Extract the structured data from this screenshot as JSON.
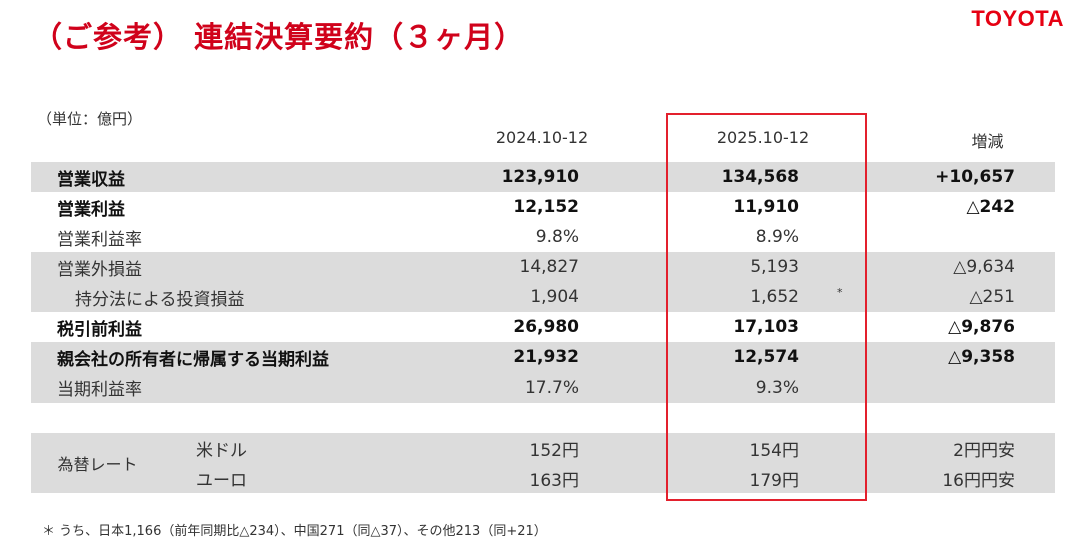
{
  "header": {
    "title": "（ご参考） 連結決算要約（３ヶ月）",
    "logo_text": "TOYOTA",
    "brand_color": "#e60012"
  },
  "table": {
    "unit": "（単位：億円）",
    "columns": [
      "2024.10-12",
      "2025.10-12",
      "増減"
    ],
    "rows": [
      {
        "label": "営業収益",
        "v1": "123,910",
        "v2": "134,568",
        "v3": "+10,657"
      },
      {
        "label": "営業利益",
        "v1": "12,152",
        "v2": "11,910",
        "v3": "△242"
      },
      {
        "label": "営業利益率",
        "v1": "9.8%",
        "v2": "8.9%",
        "v3": ""
      },
      {
        "label": "営業外損益",
        "v1": "14,827",
        "v2": "5,193",
        "v3": "△9,634"
      },
      {
        "label": "持分法による投資損益",
        "v1": "1,904",
        "v2": "1,652",
        "v2_note": "*",
        "v3": "△251"
      },
      {
        "label": "税引前利益",
        "v1": "26,980",
        "v2": "17,103",
        "v3": "△9,876"
      },
      {
        "label": "親会社の所有者に帰属する当期利益",
        "v1": "21,932",
        "v2": "12,574",
        "v3": "△9,358"
      },
      {
        "label": "当期利益率",
        "v1": "17.7%",
        "v2": "9.3%",
        "v3": ""
      }
    ],
    "fx": {
      "label": "為替レート",
      "rows": [
        {
          "currency": "米ドル",
          "v1": "152円",
          "v2": "154円",
          "v3": "2円円安"
        },
        {
          "currency": "ユーロ",
          "v1": "163円",
          "v2": "179円",
          "v3": "16円円安"
        }
      ]
    },
    "highlight_color": "#e3202d"
  },
  "footnote": "＊ うち、日本1,166（前年同期比△234）、中国271（同△37）、その他213（同+21）"
}
